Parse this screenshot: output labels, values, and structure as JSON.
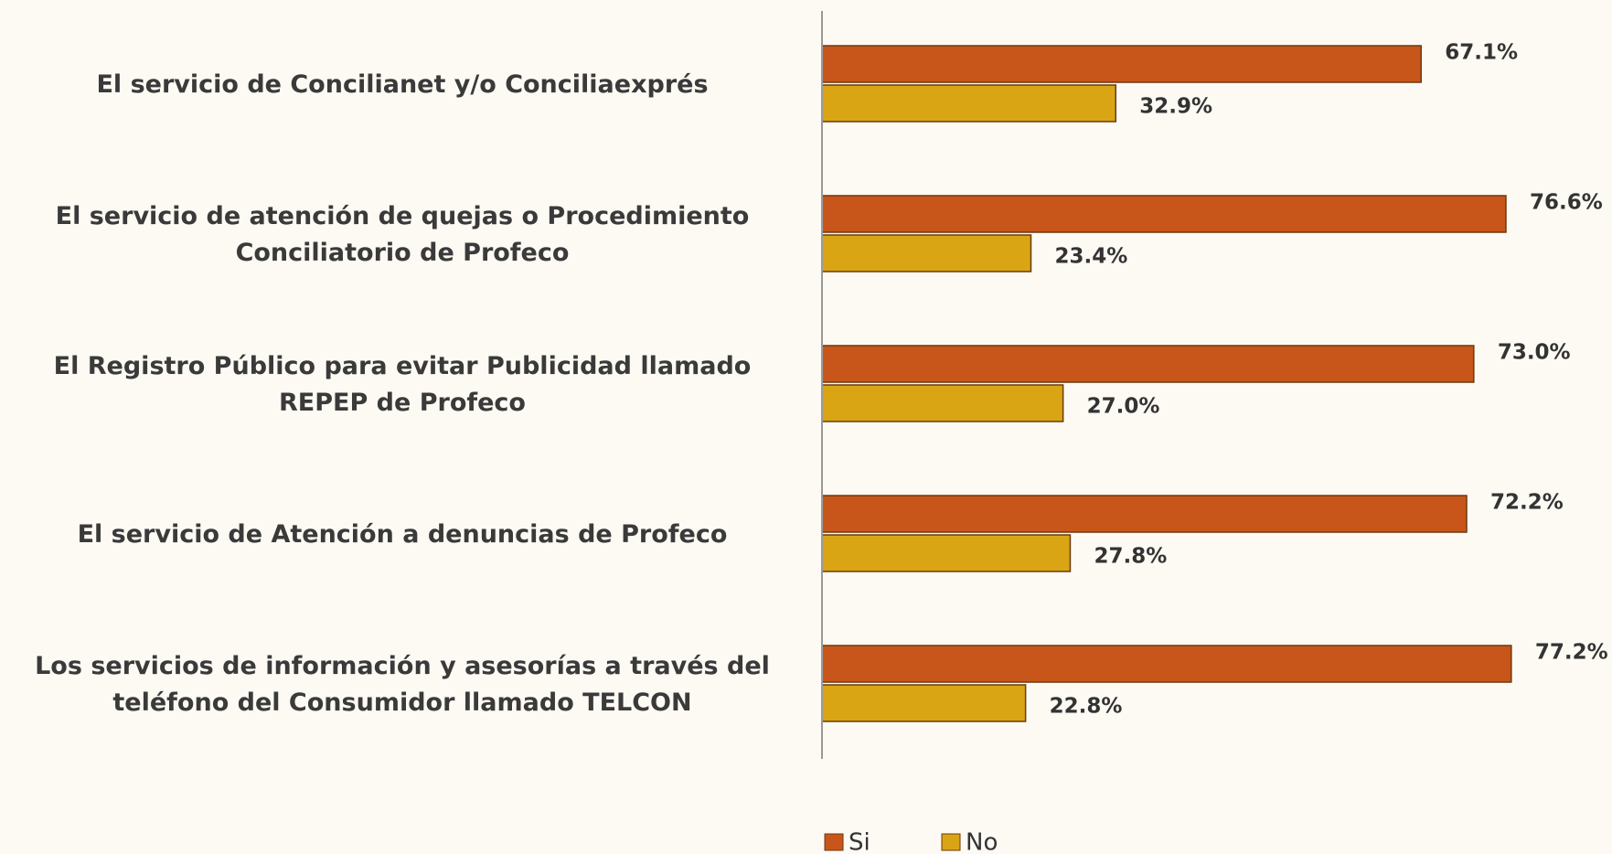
{
  "chart_data": {
    "type": "barh",
    "categories": [
      "El servicio de Concilianet y/o Conciliaexprés",
      "El servicio de atención de quejas o Procedimiento Conciliatorio de Profeco",
      "El Registro Público para evitar Publicidad llamado REPEP de Profeco",
      "El servicio de Atención a denuncias de Profeco",
      "Los servicios de información y asesorías a través del teléfono del Consumidor llamado TELCON"
    ],
    "series": [
      {
        "name": "Si",
        "color": "#c8561a",
        "values": [
          67.1,
          76.6,
          73.0,
          72.2,
          77.2
        ],
        "value_labels": [
          "67.1%",
          "76.6%",
          "73.0%",
          "72.2%",
          "77.2%"
        ]
      },
      {
        "name": "No",
        "color": "#d9a514",
        "values": [
          32.9,
          23.4,
          27.0,
          27.8,
          22.8
        ],
        "value_labels": [
          "32.9%",
          "23.4%",
          "27.0%",
          "27.8%",
          "22.8%"
        ]
      }
    ],
    "xlim": [
      0,
      85
    ],
    "legend": "bottom"
  }
}
